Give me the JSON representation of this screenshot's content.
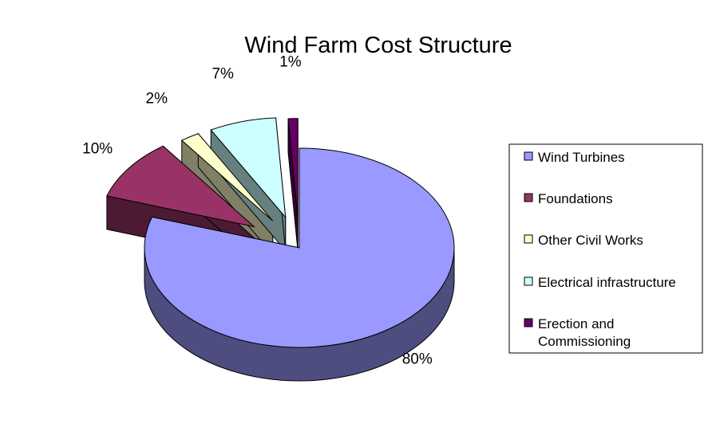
{
  "chart_data": {
    "type": "pie",
    "title": "Wind Farm Cost Structure",
    "three_d": true,
    "exploded": true,
    "legend_position": "right",
    "slices": [
      {
        "name": "Wind Turbines",
        "value": 80,
        "label": "80%",
        "color": "#9999ff",
        "side_color": "#4d4d80"
      },
      {
        "name": "Foundations",
        "value": 10,
        "label": "10%",
        "color": "#993366",
        "side_color": "#4d1a33"
      },
      {
        "name": "Other Civil Works",
        "value": 2,
        "label": "2%",
        "color": "#ffffcc",
        "side_color": "#808066"
      },
      {
        "name": "Electrical infrastructure",
        "value": 7,
        "label": "7%",
        "color": "#ccffff",
        "side_color": "#668080"
      },
      {
        "name": "Erection and Commissioning",
        "value": 1,
        "label": "1%",
        "color": "#660066",
        "side_color": "#330033"
      }
    ],
    "legend": [
      {
        "lines": [
          "Wind Turbines"
        ]
      },
      {
        "lines": [
          "Foundations"
        ]
      },
      {
        "lines": [
          "Other Civil Works"
        ]
      },
      {
        "lines": [
          "Electrical infrastructure"
        ]
      },
      {
        "lines": [
          "Erection and",
          "Commissioning"
        ]
      }
    ]
  }
}
